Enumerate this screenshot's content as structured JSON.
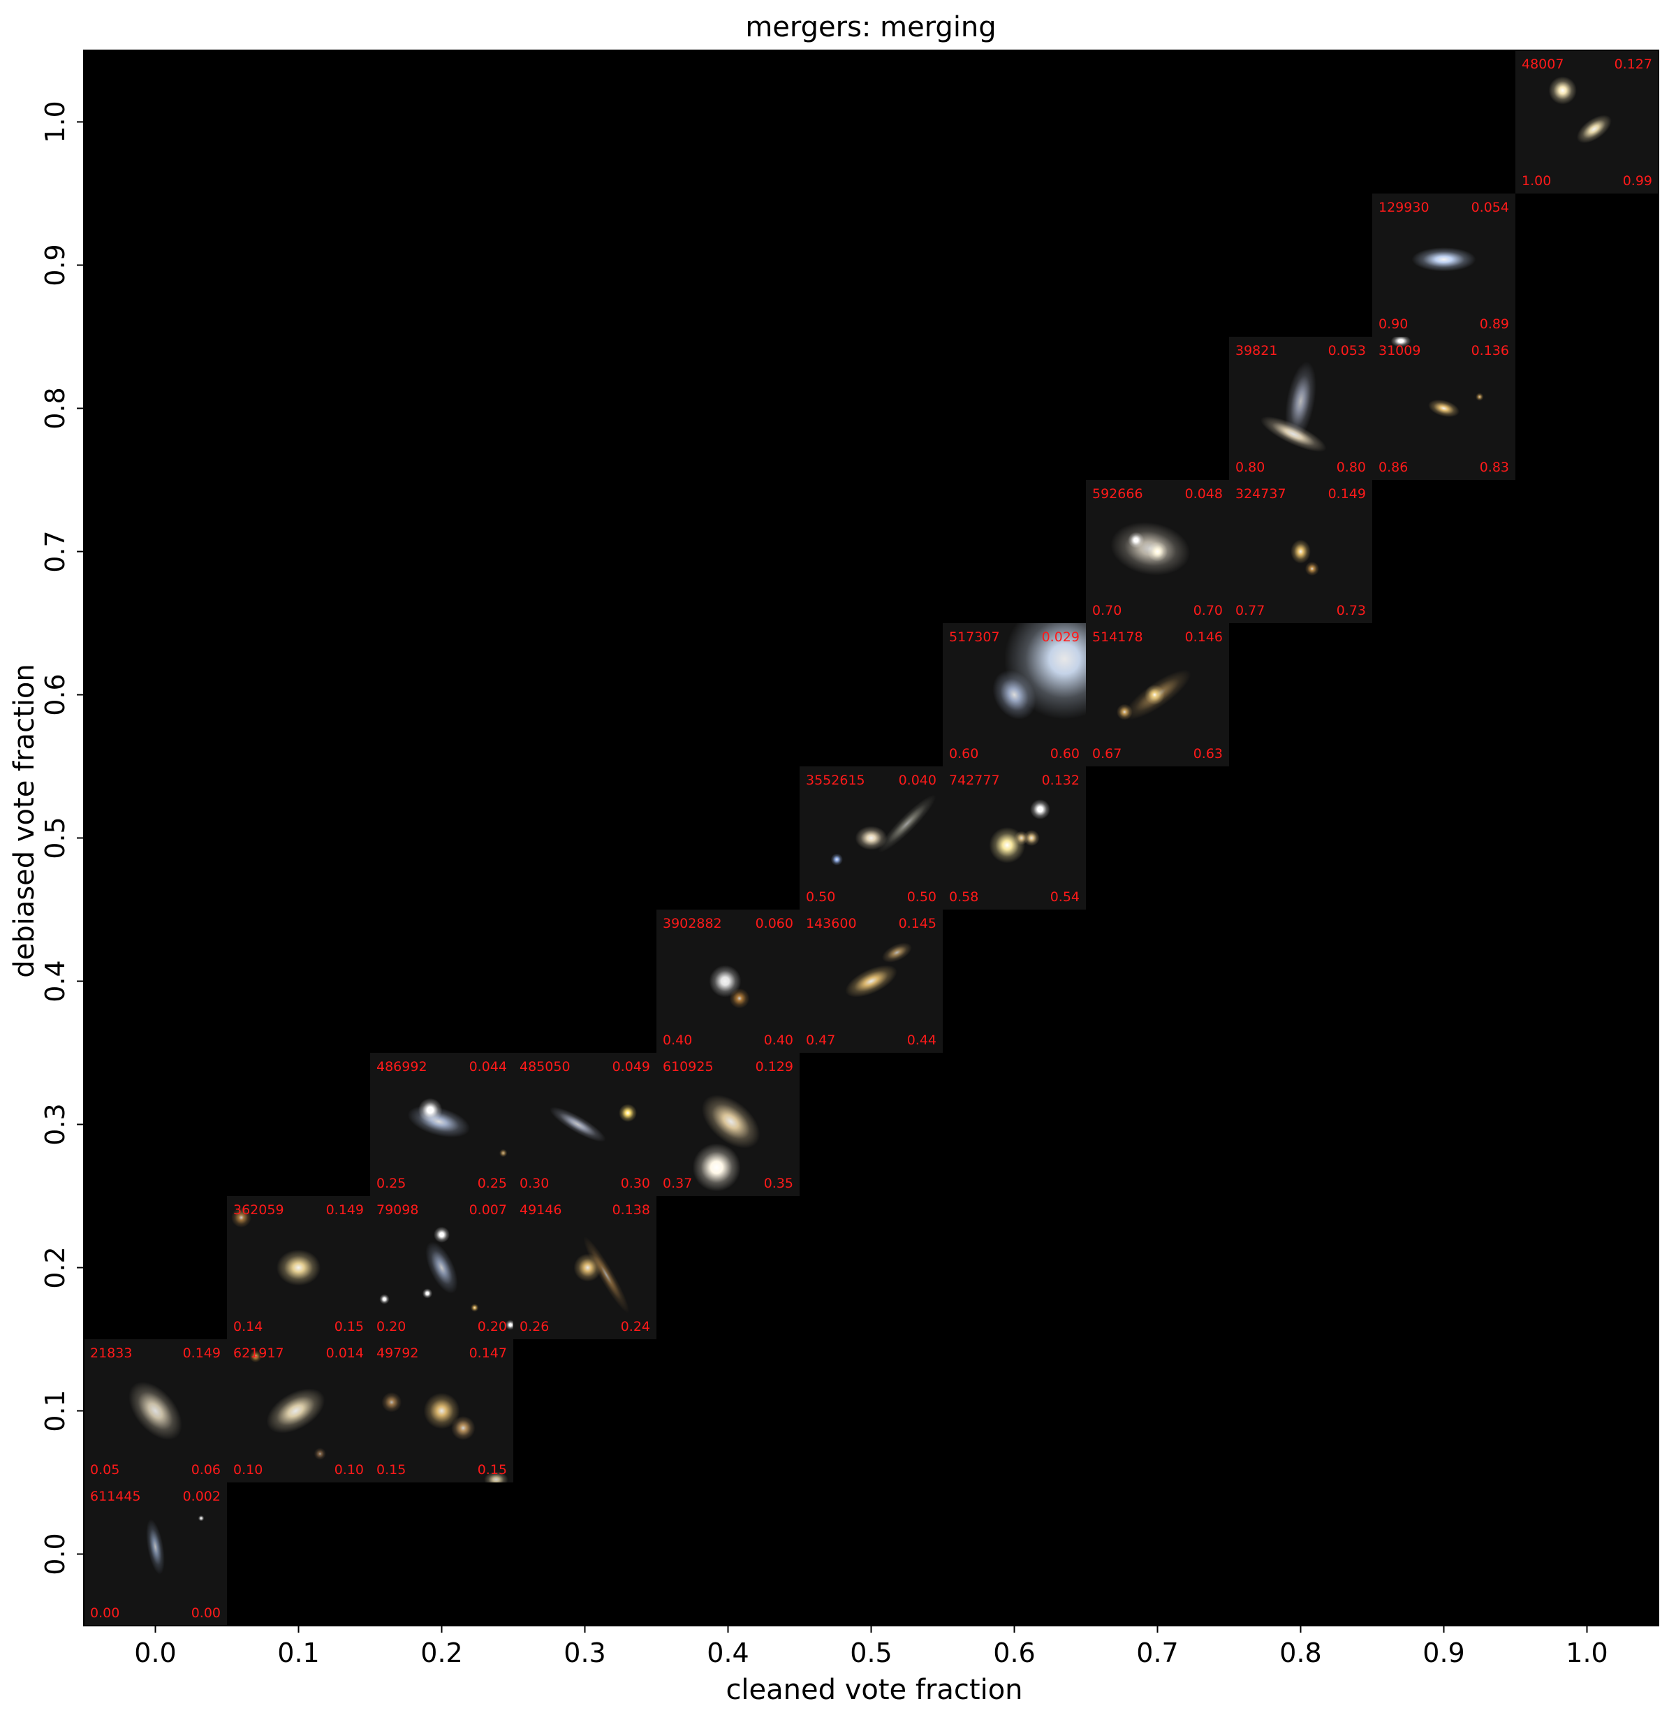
{
  "chart_data": {
    "type": "scatter",
    "title": "mergers: merging",
    "xlabel": "cleaned vote fraction",
    "ylabel": "debiased vote fraction",
    "xlim": [
      -0.05,
      1.05
    ],
    "ylim": [
      -0.05,
      1.05
    ],
    "xticks": [
      0.0,
      0.1,
      0.2,
      0.3,
      0.4,
      0.5,
      0.6,
      0.7,
      0.8,
      0.9,
      1.0
    ],
    "yticks": [
      0.0,
      0.1,
      0.2,
      0.3,
      0.4,
      0.5,
      0.6,
      0.7,
      0.8,
      0.9,
      1.0
    ],
    "xtick_labels": [
      "0.0",
      "0.1",
      "0.2",
      "0.3",
      "0.4",
      "0.5",
      "0.6",
      "0.7",
      "0.8",
      "0.9",
      "1.0"
    ],
    "ytick_labels": [
      "0.0",
      "0.1",
      "0.2",
      "0.3",
      "0.4",
      "0.5",
      "0.6",
      "0.7",
      "0.8",
      "0.9",
      "1.0"
    ],
    "background": "#000000",
    "annotation_color": "#ff1a1a",
    "tiles": [
      {
        "x": 0.0,
        "y": 0.0,
        "id": "611445",
        "value": "0.002",
        "cleaned": "0.00",
        "debiased": "0.00",
        "galaxies": [
          {
            "dx": 0.5,
            "dy": 0.45,
            "rx": 0.04,
            "ry": 0.14,
            "angle": -10,
            "color": "#9fb4d6",
            "bright": 0.7
          },
          {
            "dx": 0.82,
            "dy": 0.25,
            "rx": 0.015,
            "ry": 0.015,
            "angle": 0,
            "color": "#ffffff",
            "bright": 0.9
          }
        ]
      },
      {
        "x": 0.0,
        "y": 0.1,
        "id": "21833",
        "value": "0.149",
        "cleaned": "0.05",
        "debiased": "0.06",
        "galaxies": [
          {
            "dx": 0.5,
            "dy": 0.5,
            "rx": 0.1,
            "ry": 0.17,
            "angle": -40,
            "color": "#e8dcc0",
            "bright": 0.85
          }
        ]
      },
      {
        "x": 0.1,
        "y": 0.1,
        "id": "621917",
        "value": "0.014",
        "cleaned": "0.10",
        "debiased": "0.10",
        "galaxies": [
          {
            "dx": 0.48,
            "dy": 0.5,
            "rx": 0.16,
            "ry": 0.09,
            "angle": -30,
            "color": "#f0e0b8",
            "bright": 0.9
          },
          {
            "dx": 0.2,
            "dy": 0.12,
            "rx": 0.03,
            "ry": 0.03,
            "angle": 0,
            "color": "#e0a040",
            "bright": 0.8
          },
          {
            "dx": 0.65,
            "dy": 0.8,
            "rx": 0.03,
            "ry": 0.03,
            "angle": 0,
            "color": "#c09060",
            "bright": 0.6
          }
        ]
      },
      {
        "x": 0.2,
        "y": 0.1,
        "id": "49792",
        "value": "0.147",
        "cleaned": "0.15",
        "debiased": "0.15",
        "galaxies": [
          {
            "dx": 0.5,
            "dy": 0.5,
            "rx": 0.09,
            "ry": 0.09,
            "angle": 0,
            "color": "#f0c878",
            "bright": 0.9
          },
          {
            "dx": 0.65,
            "dy": 0.62,
            "rx": 0.06,
            "ry": 0.06,
            "angle": 0,
            "color": "#e0b070",
            "bright": 0.8
          },
          {
            "dx": 0.15,
            "dy": 0.44,
            "rx": 0.05,
            "ry": 0.05,
            "angle": 0,
            "color": "#d4a060",
            "bright": 0.7
          },
          {
            "dx": 0.88,
            "dy": 0.98,
            "rx": 0.06,
            "ry": 0.04,
            "angle": 0,
            "color": "#f0e0b0",
            "bright": 0.8
          }
        ]
      },
      {
        "x": 0.1,
        "y": 0.2,
        "id": "362059",
        "value": "0.149",
        "cleaned": "0.14",
        "debiased": "0.15",
        "galaxies": [
          {
            "dx": 0.5,
            "dy": 0.5,
            "rx": 0.11,
            "ry": 0.09,
            "angle": 0,
            "color": "#f0d898",
            "bright": 0.95
          },
          {
            "dx": 0.1,
            "dy": 0.15,
            "rx": 0.05,
            "ry": 0.05,
            "angle": 0,
            "color": "#c89048",
            "bright": 0.8
          }
        ]
      },
      {
        "x": 0.2,
        "y": 0.2,
        "id": "79098",
        "value": "0.007",
        "cleaned": "0.20",
        "debiased": "0.20",
        "galaxies": [
          {
            "dx": 0.5,
            "dy": 0.5,
            "rx": 0.06,
            "ry": 0.14,
            "angle": -25,
            "color": "#a8b8d8",
            "bright": 0.75
          },
          {
            "dx": 0.5,
            "dy": 0.27,
            "rx": 0.04,
            "ry": 0.04,
            "angle": 0,
            "color": "#ffffff",
            "bright": 1.0
          },
          {
            "dx": 0.1,
            "dy": 0.72,
            "rx": 0.025,
            "ry": 0.025,
            "angle": 0,
            "color": "#ffffff",
            "bright": 1.0
          },
          {
            "dx": 0.4,
            "dy": 0.68,
            "rx": 0.025,
            "ry": 0.025,
            "angle": 0,
            "color": "#ffffff",
            "bright": 1.0
          },
          {
            "dx": 0.73,
            "dy": 0.78,
            "rx": 0.02,
            "ry": 0.02,
            "angle": 0,
            "color": "#f0c060",
            "bright": 0.9
          },
          {
            "dx": 0.98,
            "dy": 0.9,
            "rx": 0.025,
            "ry": 0.025,
            "angle": 0,
            "color": "#ffffff",
            "bright": 1.0
          }
        ]
      },
      {
        "x": 0.3,
        "y": 0.2,
        "id": "49146",
        "value": "0.138",
        "cleaned": "0.26",
        "debiased": "0.24",
        "galaxies": [
          {
            "dx": 0.52,
            "dy": 0.5,
            "rx": 0.07,
            "ry": 0.07,
            "angle": 0,
            "color": "#f0c878",
            "bright": 0.9
          },
          {
            "dx": 0.65,
            "dy": 0.55,
            "rx": 0.035,
            "ry": 0.22,
            "angle": -30,
            "color": "#c09050",
            "bright": 0.6
          }
        ]
      },
      {
        "x": 0.2,
        "y": 0.3,
        "id": "486992",
        "value": "0.044",
        "cleaned": "0.25",
        "debiased": "0.25",
        "galaxies": [
          {
            "dx": 0.48,
            "dy": 0.48,
            "rx": 0.16,
            "ry": 0.07,
            "angle": 15,
            "color": "#b8c8e8",
            "bright": 0.85
          },
          {
            "dx": 0.42,
            "dy": 0.4,
            "rx": 0.06,
            "ry": 0.06,
            "angle": 0,
            "color": "#ffffff",
            "bright": 1.0
          },
          {
            "dx": 0.93,
            "dy": 0.7,
            "rx": 0.02,
            "ry": 0.02,
            "angle": 0,
            "color": "#f0c070",
            "bright": 0.7
          }
        ]
      },
      {
        "x": 0.3,
        "y": 0.3,
        "id": "485050",
        "value": "0.049",
        "cleaned": "0.30",
        "debiased": "0.30",
        "galaxies": [
          {
            "dx": 0.45,
            "dy": 0.5,
            "rx": 0.16,
            "ry": 0.04,
            "angle": 30,
            "color": "#c0c8e0",
            "bright": 0.75
          },
          {
            "dx": 0.8,
            "dy": 0.42,
            "rx": 0.045,
            "ry": 0.045,
            "angle": 0,
            "color": "#ffe070",
            "bright": 1.0
          }
        ]
      },
      {
        "x": 0.4,
        "y": 0.3,
        "id": "610925",
        "value": "0.129",
        "cleaned": "0.37",
        "debiased": "0.35",
        "galaxies": [
          {
            "dx": 0.52,
            "dy": 0.48,
            "rx": 0.17,
            "ry": 0.1,
            "angle": 40,
            "color": "#f0d8a8",
            "bright": 0.9
          },
          {
            "dx": 0.42,
            "dy": 0.8,
            "rx": 0.12,
            "ry": 0.12,
            "angle": 0,
            "color": "#fff8e8",
            "bright": 1.0
          }
        ]
      },
      {
        "x": 0.4,
        "y": 0.4,
        "id": "3902882",
        "value": "0.060",
        "cleaned": "0.40",
        "debiased": "0.40",
        "galaxies": [
          {
            "dx": 0.48,
            "dy": 0.5,
            "rx": 0.08,
            "ry": 0.08,
            "angle": 0,
            "color": "#f0f0f0",
            "bright": 0.95
          },
          {
            "dx": 0.58,
            "dy": 0.62,
            "rx": 0.05,
            "ry": 0.05,
            "angle": 0,
            "color": "#d09040",
            "bright": 0.8
          }
        ]
      },
      {
        "x": 0.5,
        "y": 0.4,
        "id": "143600",
        "value": "0.145",
        "cleaned": "0.47",
        "debiased": "0.44",
        "galaxies": [
          {
            "dx": 0.5,
            "dy": 0.5,
            "rx": 0.14,
            "ry": 0.06,
            "angle": -25,
            "color": "#f0c878",
            "bright": 0.9
          },
          {
            "dx": 0.68,
            "dy": 0.3,
            "rx": 0.08,
            "ry": 0.04,
            "angle": -25,
            "color": "#d8b070",
            "bright": 0.7
          }
        ]
      },
      {
        "x": 0.5,
        "y": 0.5,
        "id": "3552615",
        "value": "0.040",
        "cleaned": "0.50",
        "debiased": "0.50",
        "galaxies": [
          {
            "dx": 0.5,
            "dy": 0.5,
            "rx": 0.08,
            "ry": 0.06,
            "angle": 0,
            "color": "#f0e0c0",
            "bright": 0.95
          },
          {
            "dx": 0.75,
            "dy": 0.4,
            "rx": 0.04,
            "ry": 0.2,
            "angle": 45,
            "color": "#b0b0a0",
            "bright": 0.6
          },
          {
            "dx": 0.26,
            "dy": 0.65,
            "rx": 0.03,
            "ry": 0.03,
            "angle": 0,
            "color": "#a0c0ff",
            "bright": 0.9
          }
        ]
      },
      {
        "x": 0.6,
        "y": 0.5,
        "id": "742777",
        "value": "0.132",
        "cleaned": "0.58",
        "debiased": "0.54",
        "galaxies": [
          {
            "dx": 0.45,
            "dy": 0.55,
            "rx": 0.09,
            "ry": 0.09,
            "angle": 0,
            "color": "#f8e8a0",
            "bright": 1.0
          },
          {
            "dx": 0.68,
            "dy": 0.3,
            "rx": 0.05,
            "ry": 0.05,
            "angle": 0,
            "color": "#ffffff",
            "bright": 1.0
          },
          {
            "dx": 0.62,
            "dy": 0.5,
            "rx": 0.04,
            "ry": 0.04,
            "angle": 0,
            "color": "#f0d090",
            "bright": 0.9
          },
          {
            "dx": 0.55,
            "dy": 0.5,
            "rx": 0.035,
            "ry": 0.035,
            "angle": 0,
            "color": "#f0d090",
            "bright": 0.85
          }
        ]
      },
      {
        "x": 0.6,
        "y": 0.6,
        "id": "517307",
        "value": "0.029",
        "cleaned": "0.60",
        "debiased": "0.60",
        "galaxies": [
          {
            "dx": 0.5,
            "dy": 0.5,
            "rx": 0.1,
            "ry": 0.13,
            "angle": -30,
            "color": "#b0c0e0",
            "bright": 0.85
          },
          {
            "dx": 0.85,
            "dy": 0.25,
            "rx": 0.3,
            "ry": 0.3,
            "angle": 0,
            "color": "#d8e8ff",
            "bright": 0.9
          }
        ]
      },
      {
        "x": 0.7,
        "y": 0.6,
        "id": "514178",
        "value": "0.146",
        "cleaned": "0.67",
        "debiased": "0.63",
        "galaxies": [
          {
            "dx": 0.5,
            "dy": 0.5,
            "rx": 0.2,
            "ry": 0.06,
            "angle": -35,
            "color": "#c8a060",
            "bright": 0.6
          },
          {
            "dx": 0.48,
            "dy": 0.5,
            "rx": 0.05,
            "ry": 0.05,
            "angle": 0,
            "color": "#f0d080",
            "bright": 0.95
          },
          {
            "dx": 0.27,
            "dy": 0.62,
            "rx": 0.04,
            "ry": 0.04,
            "angle": 0,
            "color": "#e0b060",
            "bright": 0.85
          }
        ]
      },
      {
        "x": 0.7,
        "y": 0.7,
        "id": "592666",
        "value": "0.048",
        "cleaned": "0.70",
        "debiased": "0.70",
        "galaxies": [
          {
            "dx": 0.45,
            "dy": 0.48,
            "rx": 0.2,
            "ry": 0.13,
            "angle": 10,
            "color": "#e0d8c8",
            "bright": 0.8
          },
          {
            "dx": 0.35,
            "dy": 0.42,
            "rx": 0.04,
            "ry": 0.04,
            "angle": 0,
            "color": "#ffffff",
            "bright": 1.0
          },
          {
            "dx": 0.5,
            "dy": 0.5,
            "rx": 0.05,
            "ry": 0.05,
            "angle": 0,
            "color": "#fff8e0",
            "bright": 1.0
          }
        ]
      },
      {
        "x": 0.8,
        "y": 0.7,
        "id": "324737",
        "value": "0.149",
        "cleaned": "0.77",
        "debiased": "0.73",
        "galaxies": [
          {
            "dx": 0.5,
            "dy": 0.5,
            "rx": 0.05,
            "ry": 0.06,
            "angle": 0,
            "color": "#f0c870",
            "bright": 0.95
          },
          {
            "dx": 0.58,
            "dy": 0.62,
            "rx": 0.035,
            "ry": 0.035,
            "angle": 0,
            "color": "#d8a050",
            "bright": 0.85
          }
        ]
      },
      {
        "x": 0.8,
        "y": 0.8,
        "id": "39821",
        "value": "0.053",
        "cleaned": "0.80",
        "debiased": "0.80",
        "galaxies": [
          {
            "dx": 0.45,
            "dy": 0.68,
            "rx": 0.18,
            "ry": 0.05,
            "angle": 25,
            "color": "#f0e0c0",
            "bright": 0.9
          },
          {
            "dx": 0.5,
            "dy": 0.45,
            "rx": 0.07,
            "ry": 0.2,
            "angle": 10,
            "color": "#b8c0d8",
            "bright": 0.7
          }
        ]
      },
      {
        "x": 0.9,
        "y": 0.8,
        "id": "31009",
        "value": "0.136",
        "cleaned": "0.86",
        "debiased": "0.83",
        "galaxies": [
          {
            "dx": 0.5,
            "dy": 0.5,
            "rx": 0.08,
            "ry": 0.04,
            "angle": 15,
            "color": "#f0c878",
            "bright": 0.95
          },
          {
            "dx": 0.75,
            "dy": 0.42,
            "rx": 0.02,
            "ry": 0.02,
            "angle": 0,
            "color": "#e0b060",
            "bright": 0.8
          },
          {
            "dx": 0.2,
            "dy": 0.03,
            "rx": 0.05,
            "ry": 0.03,
            "angle": 0,
            "color": "#ffffff",
            "bright": 1.0
          }
        ]
      },
      {
        "x": 0.9,
        "y": 0.9,
        "id": "129930",
        "value": "0.054",
        "cleaned": "0.90",
        "debiased": "0.89",
        "galaxies": [
          {
            "dx": 0.5,
            "dy": 0.46,
            "rx": 0.16,
            "ry": 0.06,
            "angle": 0,
            "color": "#c8dcff",
            "bright": 0.95
          }
        ]
      },
      {
        "x": 1.0,
        "y": 1.0,
        "id": "48007",
        "value": "0.127",
        "cleaned": "1.00",
        "debiased": "0.99",
        "galaxies": [
          {
            "dx": 0.33,
            "dy": 0.28,
            "rx": 0.07,
            "ry": 0.07,
            "angle": 0,
            "color": "#f8e8b8",
            "bright": 1.0
          },
          {
            "dx": 0.55,
            "dy": 0.55,
            "rx": 0.1,
            "ry": 0.05,
            "angle": -35,
            "color": "#f0e0b0",
            "bright": 0.95
          }
        ]
      }
    ]
  }
}
